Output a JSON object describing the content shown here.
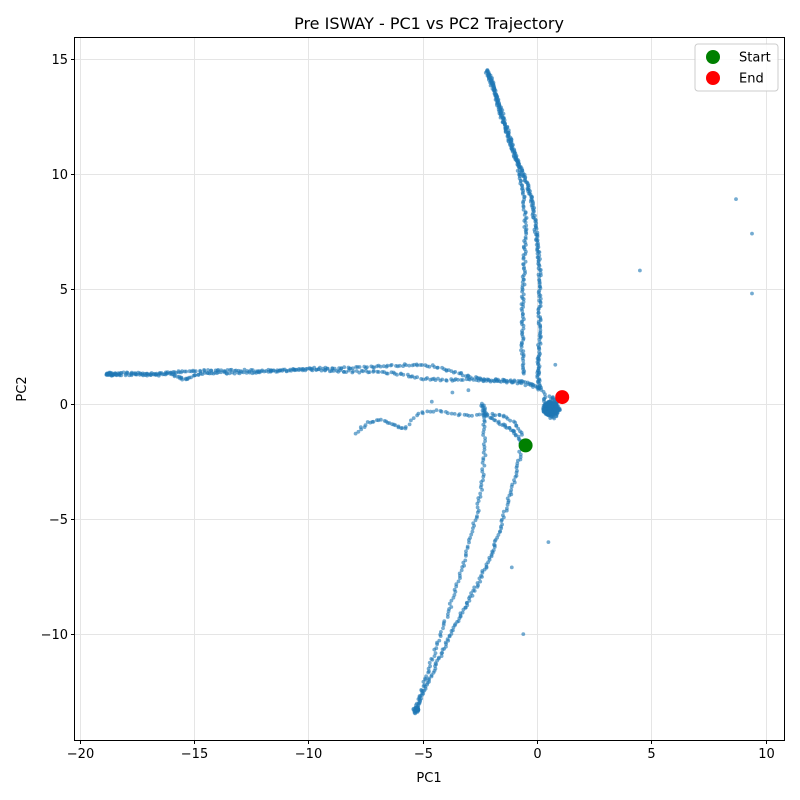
{
  "chart_data": {
    "type": "scatter",
    "title": "Pre ISWAY - PC1 vs PC2 Trajectory",
    "xlabel": "PC1",
    "ylabel": "PC2",
    "xlim": [
      -20.2,
      10.8
    ],
    "ylim": [
      -14.6,
      15.9
    ],
    "xticks": [
      -20,
      -15,
      -10,
      -5,
      0,
      5,
      10
    ],
    "yticks": [
      -10,
      -5,
      0,
      5,
      10,
      15
    ],
    "xtick_labels": [
      "−20",
      "−15",
      "−10",
      "−5",
      "0",
      "5",
      "10"
    ],
    "ytick_labels": [
      "−10",
      "−5",
      "0",
      "5",
      "10",
      "15"
    ],
    "grid": true,
    "legend_position": "top-right",
    "colors": {
      "trajectory": "#1f77b4",
      "start": "#008000",
      "end": "#ff0000"
    },
    "series": [
      {
        "role": "trajectory",
        "marker": "dot",
        "paths": [
          {
            "points": [
              [
                -2.2,
                14.5
              ],
              [
                -2.0,
                14.1
              ],
              [
                -1.85,
                13.6
              ],
              [
                -1.7,
                13.0
              ],
              [
                -1.55,
                12.5
              ],
              [
                -1.35,
                11.9
              ],
              [
                -1.15,
                11.3
              ],
              [
                -0.95,
                10.7
              ],
              [
                -0.7,
                10.2
              ],
              [
                -0.45,
                9.6
              ],
              [
                -0.25,
                9.0
              ],
              [
                -0.15,
                8.3
              ],
              [
                -0.05,
                7.5
              ],
              [
                0.05,
                6.8
              ],
              [
                0.12,
                6.0
              ],
              [
                0.12,
                5.0
              ],
              [
                0.1,
                4.0
              ],
              [
                0.12,
                3.0
              ],
              [
                0.08,
                2.0
              ],
              [
                0.05,
                1.3
              ],
              [
                0.1,
                0.6
              ]
            ],
            "n": 14
          },
          {
            "points": [
              [
                -2.2,
                14.4
              ],
              [
                -1.95,
                13.8
              ],
              [
                -1.7,
                13.1
              ],
              [
                -1.45,
                12.4
              ],
              [
                -1.2,
                11.6
              ],
              [
                -0.95,
                10.8
              ],
              [
                -0.75,
                10.0
              ],
              [
                -0.6,
                9.2
              ],
              [
                -0.5,
                8.2
              ],
              [
                -0.5,
                7.2
              ],
              [
                -0.55,
                6.2
              ],
              [
                -0.6,
                5.2
              ],
              [
                -0.65,
                4.2
              ],
              [
                -0.6,
                3.2
              ],
              [
                -0.65,
                2.2
              ],
              [
                -0.6,
                1.2
              ]
            ],
            "n": 12
          },
          {
            "points": [
              [
                -18.6,
                1.3
              ],
              [
                -17.8,
                1.35
              ],
              [
                -17.0,
                1.3
              ],
              [
                -16.2,
                1.35
              ],
              [
                -15.5,
                1.4
              ],
              [
                -14.6,
                1.45
              ],
              [
                -13.6,
                1.45
              ],
              [
                -12.6,
                1.45
              ],
              [
                -11.6,
                1.45
              ],
              [
                -10.6,
                1.5
              ],
              [
                -9.6,
                1.55
              ],
              [
                -8.6,
                1.55
              ],
              [
                -7.6,
                1.6
              ],
              [
                -6.6,
                1.65
              ],
              [
                -5.6,
                1.7
              ],
              [
                -4.6,
                1.65
              ],
              [
                -3.6,
                1.4
              ],
              [
                -2.8,
                1.15
              ],
              [
                -2.0,
                1.05
              ],
              [
                -1.2,
                1.0
              ],
              [
                -0.4,
                0.95
              ],
              [
                0.3,
                0.6
              ]
            ],
            "n": 10
          },
          {
            "points": [
              [
                -18.4,
                1.25
              ],
              [
                -17.5,
                1.3
              ],
              [
                -16.8,
                1.25
              ],
              [
                -16.0,
                1.3
              ],
              [
                -15.4,
                1.05
              ],
              [
                -14.8,
                1.3
              ],
              [
                -14.0,
                1.35
              ],
              [
                -13.0,
                1.35
              ],
              [
                -12.0,
                1.4
              ],
              [
                -11.0,
                1.45
              ],
              [
                -10.0,
                1.5
              ],
              [
                -9.0,
                1.45
              ],
              [
                -8.0,
                1.4
              ],
              [
                -7.0,
                1.4
              ],
              [
                -6.0,
                1.3
              ],
              [
                -5.0,
                1.1
              ],
              [
                -4.0,
                1.05
              ],
              [
                -3.0,
                1.05
              ],
              [
                -2.0,
                1.0
              ],
              [
                -1.0,
                0.95
              ],
              [
                0.2,
                0.7
              ]
            ],
            "n": 10
          },
          {
            "points": [
              [
                -7.9,
                -1.3
              ],
              [
                -7.4,
                -0.8
              ],
              [
                -6.8,
                -0.7
              ],
              [
                -6.2,
                -0.9
              ],
              [
                -5.8,
                -1.1
              ],
              [
                -5.2,
                -0.4
              ],
              [
                -4.4,
                -0.3
              ],
              [
                -3.6,
                -0.45
              ],
              [
                -2.8,
                -0.5
              ],
              [
                -2.0,
                -0.45
              ],
              [
                -1.4,
                -0.55
              ],
              [
                -0.9,
                -0.9
              ],
              [
                -0.6,
                -1.4
              ]
            ],
            "n": 6
          },
          {
            "points": [
              [
                -0.6,
                -1.8
              ],
              [
                -1.0,
                -1.2
              ],
              [
                -1.5,
                -0.9
              ],
              [
                -2.2,
                -0.5
              ],
              [
                -2.4,
                0.0
              ],
              [
                -2.3,
                -1.0
              ],
              [
                -2.3,
                -2.2
              ],
              [
                -2.4,
                -3.4
              ],
              [
                -2.6,
                -4.6
              ],
              [
                -2.9,
                -5.8
              ],
              [
                -3.2,
                -7.0
              ],
              [
                -3.6,
                -8.2
              ],
              [
                -4.0,
                -9.4
              ],
              [
                -4.4,
                -10.6
              ],
              [
                -4.8,
                -11.7
              ],
              [
                -5.1,
                -12.7
              ],
              [
                -5.3,
                -13.4
              ]
            ],
            "n": 10
          },
          {
            "points": [
              [
                -0.7,
                -2.0
              ],
              [
                -0.9,
                -3.0
              ],
              [
                -1.2,
                -4.0
              ],
              [
                -1.5,
                -5.0
              ],
              [
                -1.8,
                -6.0
              ],
              [
                -2.1,
                -6.8
              ],
              [
                -2.5,
                -7.6
              ],
              [
                -2.9,
                -8.4
              ],
              [
                -3.3,
                -9.1
              ],
              [
                -3.7,
                -9.9
              ],
              [
                -4.1,
                -10.7
              ],
              [
                -4.5,
                -11.5
              ],
              [
                -4.9,
                -12.3
              ],
              [
                -5.2,
                -13.0
              ],
              [
                -5.4,
                -13.5
              ]
            ],
            "n": 10
          },
          {
            "points": [
              [
                0.3,
                0.5
              ],
              [
                0.4,
                -0.2
              ],
              [
                0.5,
                -0.5
              ],
              [
                0.7,
                -0.3
              ],
              [
                0.9,
                0.1
              ],
              [
                0.6,
                0.3
              ],
              [
                0.4,
                -0.4
              ],
              [
                0.8,
                -0.6
              ],
              [
                1.0,
                -0.2
              ],
              [
                0.5,
                0.0
              ],
              [
                0.6,
                -0.7
              ]
            ],
            "n": 8
          }
        ],
        "clusters": [
          {
            "center": [
              0.6,
              -0.2
            ],
            "spread": [
              0.35,
              0.3
            ],
            "count": 160
          },
          {
            "center": [
              -18.6,
              1.3
            ],
            "spread": [
              0.25,
              0.08
            ],
            "count": 25
          },
          {
            "center": [
              -5.3,
              -13.3
            ],
            "spread": [
              0.12,
              0.12
            ],
            "count": 18
          }
        ],
        "outliers": [
          [
            8.7,
            8.9
          ],
          [
            9.4,
            7.4
          ],
          [
            4.5,
            5.8
          ],
          [
            9.4,
            4.8
          ],
          [
            0.8,
            1.7
          ],
          [
            0.5,
            -6.0
          ],
          [
            -0.6,
            -10.0
          ],
          [
            -1.1,
            -7.1
          ],
          [
            -3.0,
            0.6
          ],
          [
            -3.7,
            0.5
          ],
          [
            -4.6,
            0.1
          ],
          [
            0.3,
            0.2
          ]
        ]
      },
      {
        "name": "Start",
        "role": "start",
        "marker": "big-dot",
        "points": [
          [
            -0.5,
            -1.8
          ]
        ]
      },
      {
        "name": "End",
        "role": "end",
        "marker": "big-dot",
        "points": [
          [
            1.1,
            0.3
          ]
        ]
      }
    ]
  }
}
